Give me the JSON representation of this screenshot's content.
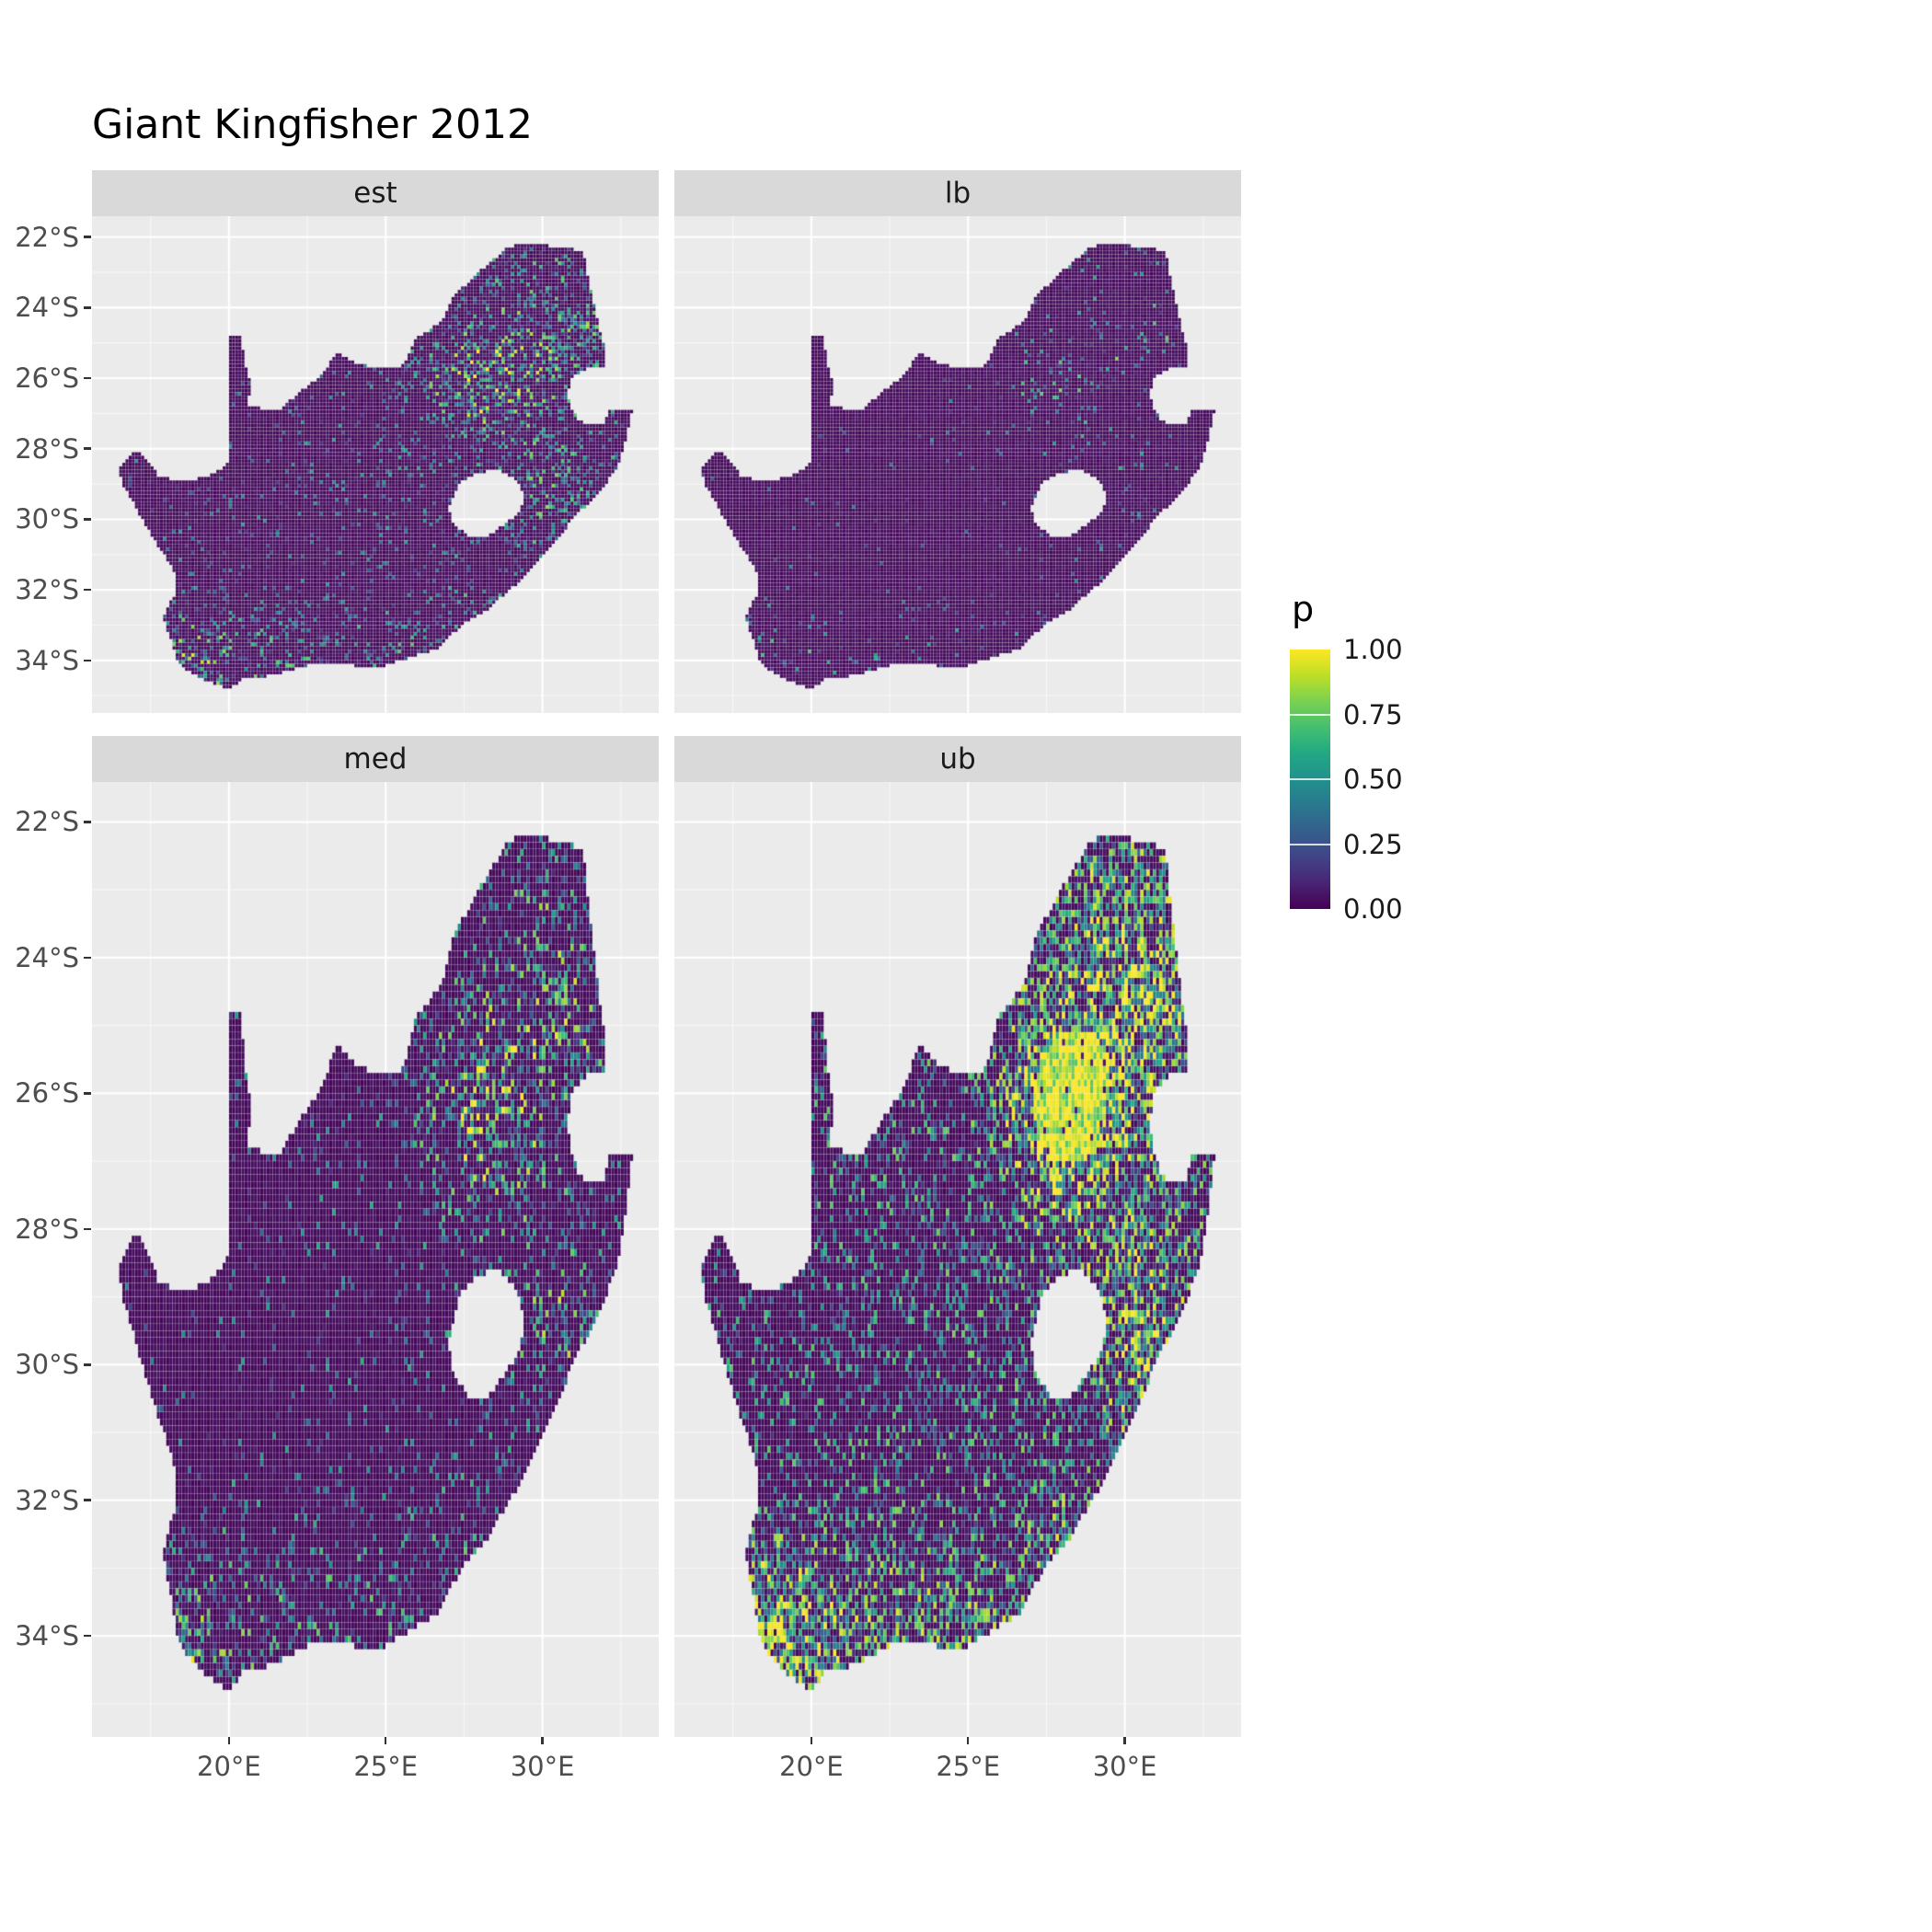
{
  "chart_data": {
    "type": "heatmap",
    "title": "Giant Kingfisher 2012",
    "facet_variable_levels": [
      "est",
      "lb",
      "med",
      "ub"
    ],
    "facets": [
      {
        "label": "est",
        "approx_density_model": {
          "seed": 11,
          "base_rate": 0.065,
          "hotspot_boost": 0.5,
          "gamma": 1.6,
          "v_base": 0.55,
          "v_hot": 0.5,
          "solid_hot": false
        }
      },
      {
        "label": "lb",
        "approx_density_model": {
          "seed": 23,
          "base_rate": 0.018,
          "hotspot_boost": 0.13,
          "gamma": 2.2,
          "v_base": 0.45,
          "v_hot": 0.45,
          "solid_hot": false
        }
      },
      {
        "label": "med",
        "approx_density_model": {
          "seed": 37,
          "base_rate": 0.06,
          "hotspot_boost": 0.5,
          "gamma": 1.45,
          "v_base": 0.6,
          "v_hot": 0.5,
          "solid_hot": false
        }
      },
      {
        "label": "ub",
        "approx_density_model": {
          "seed": 53,
          "base_rate": 0.2,
          "hotspot_boost": 0.8,
          "gamma": 0.95,
          "v_base": 0.75,
          "v_hot": 0.6,
          "solid_hot": true
        }
      }
    ],
    "x_axis": {
      "ticks": [
        {
          "lon": 20,
          "label": "20°E"
        },
        {
          "lon": 25,
          "label": "25°E"
        },
        {
          "lon": 30,
          "label": "30°E"
        }
      ],
      "minor": [
        17.5,
        22.5,
        27.5,
        32.5
      ]
    },
    "y_axis": {
      "ticks": [
        {
          "lat": -22,
          "label": "22°S"
        },
        {
          "lat": -24,
          "label": "24°S"
        },
        {
          "lat": -26,
          "label": "26°S"
        },
        {
          "lat": -28,
          "label": "28°S"
        },
        {
          "lat": -30,
          "label": "30°S"
        },
        {
          "lat": -32,
          "label": "32°S"
        },
        {
          "lat": -34,
          "label": "34°S"
        }
      ],
      "minor": [
        -23,
        -25,
        -27,
        -29,
        -31,
        -33,
        -35
      ]
    },
    "lon_domain": [
      15.63,
      33.71
    ],
    "lat_domain": [
      -21.41,
      -35.49
    ],
    "legend": {
      "title": "p",
      "ticks": [
        {
          "value": 1.0,
          "label": "1.00"
        },
        {
          "value": 0.75,
          "label": "0.75"
        },
        {
          "value": 0.5,
          "label": "0.50"
        },
        {
          "value": 0.25,
          "label": "0.25"
        },
        {
          "value": 0.0,
          "label": "0.00"
        }
      ]
    },
    "colormap_stops": [
      [
        0.0,
        "#440154"
      ],
      [
        0.1,
        "#482475"
      ],
      [
        0.2,
        "#414487"
      ],
      [
        0.3,
        "#355F8D"
      ],
      [
        0.4,
        "#2A788E"
      ],
      [
        0.5,
        "#21918C"
      ],
      [
        0.6,
        "#22A884"
      ],
      [
        0.7,
        "#44BF70"
      ],
      [
        0.8,
        "#7AD151"
      ],
      [
        0.9,
        "#BDDF26"
      ],
      [
        1.0,
        "#FDE725"
      ]
    ],
    "colors": {
      "panel_bg": "#EBEBEB",
      "strip_bg": "#D9D9D9",
      "grid_major": "#FFFFFF",
      "grid_minor": "rgba(255,255,255,0.65)",
      "na_fill": "#440154",
      "tick_mark": "#333333",
      "axis_text": "#4D4D4D",
      "strip_text": "#1A1A1A",
      "title_text": "#000000"
    },
    "region_outline": {
      "name": "South Africa",
      "outer": [
        [
          16.45,
          -28.58
        ],
        [
          16.8,
          -28.25
        ],
        [
          17.1,
          -28.05
        ],
        [
          17.45,
          -28.4
        ],
        [
          17.75,
          -28.75
        ],
        [
          18.3,
          -28.9
        ],
        [
          19.0,
          -28.85
        ],
        [
          19.55,
          -28.7
        ],
        [
          19.99,
          -28.42
        ],
        [
          19.99,
          -24.77
        ],
        [
          20.4,
          -24.8
        ],
        [
          20.48,
          -25.45
        ],
        [
          20.68,
          -26.15
        ],
        [
          20.62,
          -26.8
        ],
        [
          21.1,
          -26.87
        ],
        [
          21.7,
          -26.86
        ],
        [
          22.25,
          -26.38
        ],
        [
          22.9,
          -25.98
        ],
        [
          23.45,
          -25.3
        ],
        [
          24.2,
          -25.62
        ],
        [
          25.0,
          -25.75
        ],
        [
          25.6,
          -25.62
        ],
        [
          25.92,
          -24.92
        ],
        [
          26.45,
          -24.63
        ],
        [
          26.88,
          -24.28
        ],
        [
          27.15,
          -23.68
        ],
        [
          27.72,
          -23.22
        ],
        [
          28.25,
          -22.78
        ],
        [
          28.9,
          -22.3
        ],
        [
          29.4,
          -22.18
        ],
        [
          30.0,
          -22.23
        ],
        [
          30.65,
          -22.3
        ],
        [
          31.3,
          -22.4
        ],
        [
          31.55,
          -23.5
        ],
        [
          31.75,
          -24.3
        ],
        [
          31.97,
          -25.1
        ],
        [
          32.02,
          -25.65
        ],
        [
          31.4,
          -25.73
        ],
        [
          30.97,
          -25.98
        ],
        [
          30.8,
          -26.4
        ],
        [
          30.95,
          -26.9
        ],
        [
          31.18,
          -27.22
        ],
        [
          31.65,
          -27.33
        ],
        [
          31.97,
          -27.31
        ],
        [
          32.13,
          -26.86
        ],
        [
          32.89,
          -26.86
        ],
        [
          32.62,
          -27.9
        ],
        [
          32.4,
          -28.5
        ],
        [
          32.05,
          -28.98
        ],
        [
          31.72,
          -29.35
        ],
        [
          31.05,
          -29.9
        ],
        [
          30.62,
          -30.42
        ],
        [
          30.2,
          -30.9
        ],
        [
          29.55,
          -31.55
        ],
        [
          28.9,
          -32.05
        ],
        [
          28.2,
          -32.6
        ],
        [
          27.45,
          -33.0
        ],
        [
          26.6,
          -33.7
        ],
        [
          25.68,
          -33.95
        ],
        [
          25.0,
          -34.15
        ],
        [
          24.2,
          -34.18
        ],
        [
          23.4,
          -34.05
        ],
        [
          22.6,
          -34.12
        ],
        [
          21.9,
          -34.3
        ],
        [
          21.2,
          -34.45
        ],
        [
          20.55,
          -34.45
        ],
        [
          20.0,
          -34.82
        ],
        [
          19.4,
          -34.62
        ],
        [
          18.85,
          -34.38
        ],
        [
          18.48,
          -34.18
        ],
        [
          18.32,
          -33.92
        ],
        [
          18.1,
          -33.3
        ],
        [
          17.88,
          -32.78
        ],
        [
          18.32,
          -32.05
        ],
        [
          18.25,
          -31.45
        ],
        [
          17.6,
          -30.55
        ],
        [
          17.05,
          -29.7
        ],
        [
          16.65,
          -29.05
        ]
      ],
      "holes": [
        [
          [
            27.02,
            -29.63
          ],
          [
            27.4,
            -28.95
          ],
          [
            27.95,
            -28.68
          ],
          [
            28.6,
            -28.6
          ],
          [
            29.15,
            -28.88
          ],
          [
            29.45,
            -29.3
          ],
          [
            29.28,
            -29.78
          ],
          [
            28.85,
            -30.12
          ],
          [
            28.18,
            -30.52
          ],
          [
            27.72,
            -30.55
          ],
          [
            27.38,
            -30.28
          ],
          [
            27.08,
            -29.98
          ]
        ]
      ]
    },
    "hotspots": [
      {
        "lon": 28.05,
        "lat": -26.15,
        "sigma": 1.05,
        "w": 1.0
      },
      {
        "lon": 29.9,
        "lat": -23.6,
        "sigma": 1.7,
        "w": 0.5
      },
      {
        "lon": 31.1,
        "lat": -25.3,
        "sigma": 1.0,
        "w": 0.45
      },
      {
        "lon": 30.8,
        "lat": -29.9,
        "sigma": 0.95,
        "w": 0.55
      },
      {
        "lon": 30.2,
        "lat": -28.4,
        "sigma": 1.3,
        "w": 0.3
      },
      {
        "lon": 27.9,
        "lat": -32.8,
        "sigma": 0.9,
        "w": 0.35
      },
      {
        "lon": 18.65,
        "lat": -33.9,
        "sigma": 0.85,
        "w": 0.75
      },
      {
        "lon": 20.6,
        "lat": -34.35,
        "sigma": 1.3,
        "w": 0.4
      },
      {
        "lon": 23.2,
        "lat": -33.95,
        "sigma": 1.1,
        "w": 0.3
      },
      {
        "lon": 25.6,
        "lat": -33.8,
        "sigma": 0.9,
        "w": 0.3
      },
      {
        "lon": 26.2,
        "lat": -28.2,
        "sigma": 2.8,
        "w": 0.12
      }
    ]
  }
}
